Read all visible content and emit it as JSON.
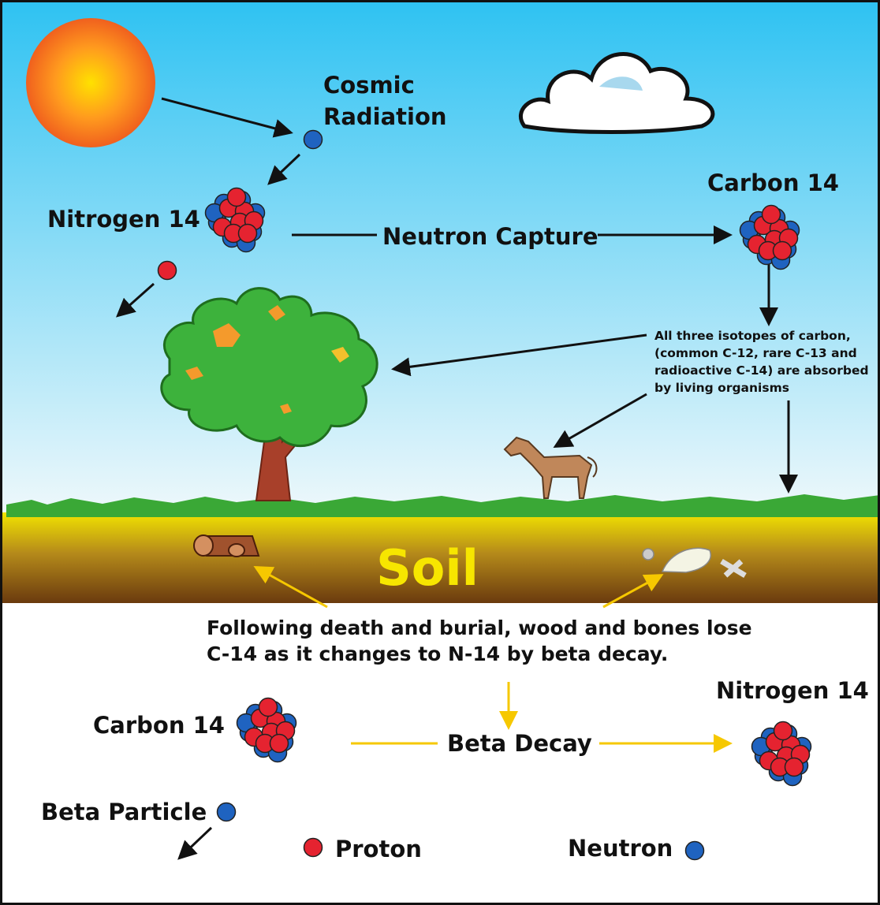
{
  "labels": {
    "cosmic_radiation": [
      "Cosmic",
      "Radiation"
    ],
    "nitrogen_14_top": "Nitrogen 14",
    "neutron_capture": "Neutron Capture",
    "carbon_14_top": "Carbon 14",
    "absorption_note": [
      "All three isotopes of carbon,",
      "(common C-12, rare C-13 and",
      "radioactive C-14) are absorbed",
      "by living organisms"
    ],
    "soil": "Soil",
    "decay_note": [
      "Following death and burial, wood and bones lose",
      "C-14 as it changes to N-14 by beta decay."
    ],
    "carbon_14_bottom": "Carbon 14",
    "beta_decay": "Beta Decay",
    "nitrogen_14_bottom": "Nitrogen 14",
    "beta_particle": "Beta Particle",
    "proton": "Proton",
    "neutron": "Neutron"
  }
}
